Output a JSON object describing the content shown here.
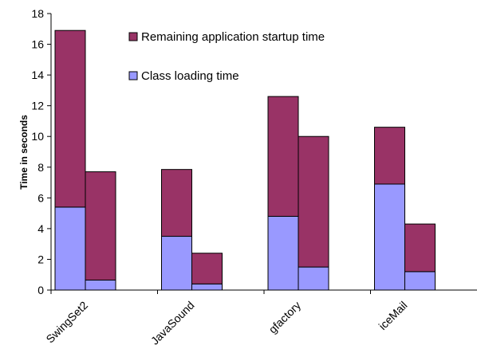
{
  "chart_data": {
    "type": "bar",
    "stacked": true,
    "ylabel": "Time in seconds",
    "ylim": [
      0,
      18
    ],
    "yticks": [
      0,
      2,
      4,
      6,
      8,
      10,
      12,
      14,
      16,
      18
    ],
    "grid": false,
    "legend_position": "top-center",
    "categories": [
      "SwingSet2",
      "JavaSound",
      "gfactory",
      "iceMail"
    ],
    "bars_per_category": 2,
    "series": [
      {
        "name": "Class loading time",
        "color": "#9999ff",
        "values": [
          [
            5.4,
            0.65
          ],
          [
            3.5,
            0.4
          ],
          [
            4.8,
            1.5
          ],
          [
            6.9,
            1.2
          ]
        ]
      },
      {
        "name": "Remaining application startup time",
        "color": "#993366",
        "values": [
          [
            11.5,
            7.05
          ],
          [
            4.35,
            2.0
          ],
          [
            7.8,
            8.5
          ],
          [
            3.7,
            3.1
          ]
        ]
      }
    ]
  }
}
